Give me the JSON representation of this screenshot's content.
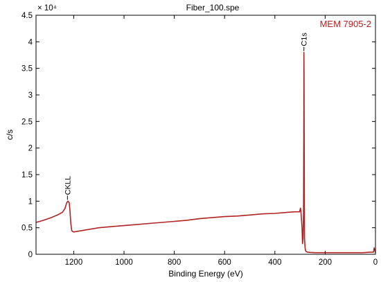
{
  "chart_data": {
    "type": "line",
    "title": "Fiber_100.spe",
    "xlabel": "Binding Energy (eV)",
    "ylabel": "c/s",
    "y_multiplier_label": "× 10⁴",
    "xlim": [
      1350,
      0
    ],
    "ylim": [
      0,
      4.5
    ],
    "x_reversed": true,
    "x_ticks": [
      1200,
      1000,
      800,
      600,
      400,
      200,
      0
    ],
    "y_ticks": [
      0,
      0.5,
      1,
      1.5,
      2,
      2.5,
      3,
      3.5,
      4,
      4.5
    ],
    "grid": false,
    "legend_position": "top-right",
    "series": [
      {
        "name": "MEM 7905-2",
        "color": "#b22222",
        "x": [
          1350,
          1320,
          1290,
          1265,
          1245,
          1235,
          1228,
          1223,
          1218,
          1215,
          1212,
          1208,
          1205,
          1200,
          1150,
          1100,
          1050,
          1000,
          950,
          900,
          850,
          800,
          750,
          700,
          650,
          600,
          550,
          500,
          450,
          400,
          350,
          320,
          310,
          302,
          298,
          295,
          292,
          290,
          288,
          286,
          285,
          284.5,
          284,
          283,
          282,
          280,
          278,
          275,
          270,
          260,
          240,
          200,
          150,
          100,
          50,
          20,
          8,
          5,
          0
        ],
        "values": [
          0.6,
          0.64,
          0.69,
          0.74,
          0.79,
          0.86,
          0.97,
          1.0,
          0.97,
          0.82,
          0.6,
          0.45,
          0.43,
          0.42,
          0.46,
          0.5,
          0.52,
          0.54,
          0.56,
          0.58,
          0.6,
          0.62,
          0.64,
          0.67,
          0.69,
          0.71,
          0.72,
          0.74,
          0.76,
          0.77,
          0.79,
          0.8,
          0.8,
          0.8,
          0.87,
          0.72,
          0.5,
          0.2,
          0.3,
          0.8,
          2.6,
          3.8,
          3.4,
          1.3,
          0.3,
          0.12,
          0.07,
          0.05,
          0.04,
          0.035,
          0.03,
          0.03,
          0.03,
          0.03,
          0.03,
          0.04,
          0.04,
          0.12,
          0.03
        ]
      }
    ],
    "annotations": [
      {
        "text": "CKLL",
        "x": 1225
      },
      {
        "text": "C1s",
        "x": 284.5
      }
    ]
  }
}
